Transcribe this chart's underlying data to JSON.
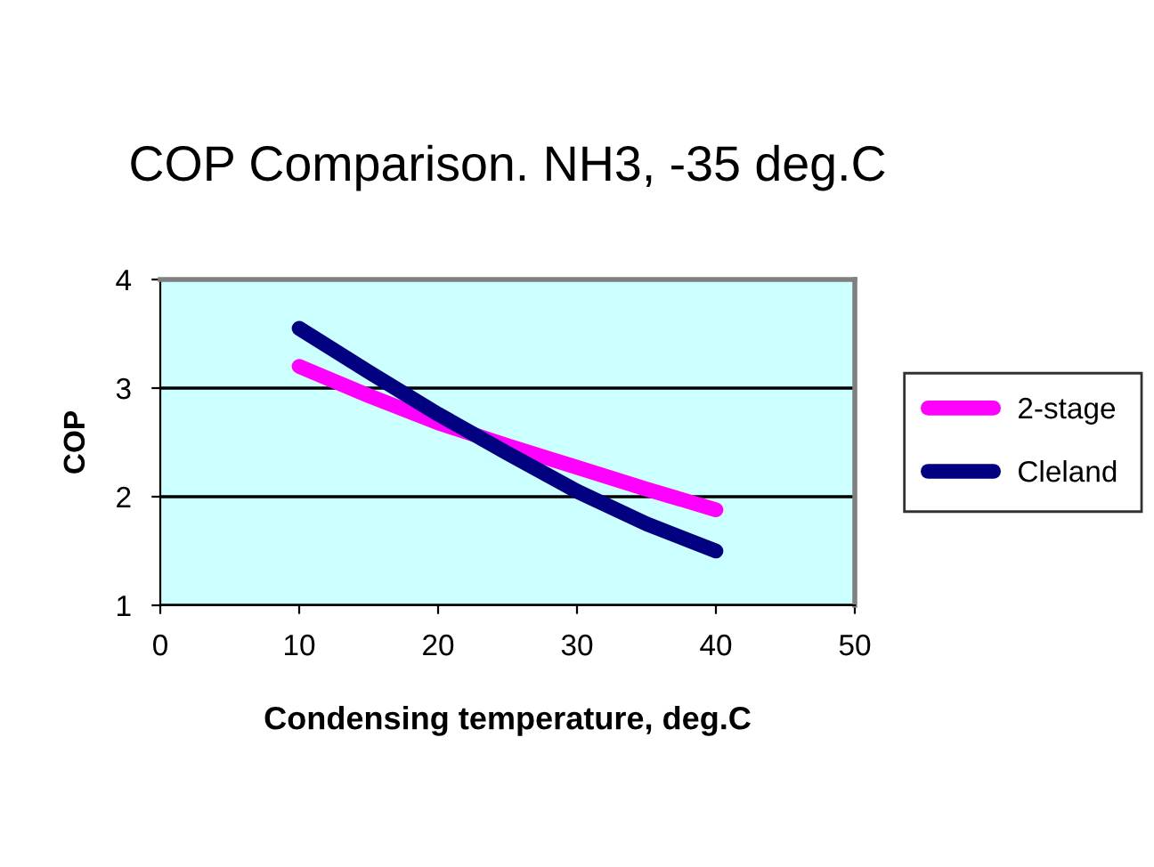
{
  "chart_data": {
    "type": "line",
    "title": "COP Comparison. NH3, -35 deg.C",
    "xlabel": "Condensing temperature, deg.C",
    "ylabel": "COP",
    "x": [
      10,
      15,
      20,
      25,
      30,
      35,
      40
    ],
    "series": [
      {
        "name": "2-stage",
        "color": "#ff00ff",
        "values": [
          3.2,
          2.93,
          2.68,
          2.47,
          2.27,
          2.07,
          1.88
        ]
      },
      {
        "name": "Cleland",
        "color": "#000080",
        "values": [
          3.55,
          3.15,
          2.76,
          2.4,
          2.05,
          1.75,
          1.5
        ]
      }
    ],
    "xlim": [
      0,
      50
    ],
    "xticks": [
      0,
      10,
      20,
      30,
      40,
      50
    ],
    "ylim": [
      1,
      4
    ],
    "yticks": [
      1,
      2,
      3,
      4
    ],
    "grid": "y",
    "legend": "right",
    "marker": "none",
    "line_style": "solid"
  }
}
